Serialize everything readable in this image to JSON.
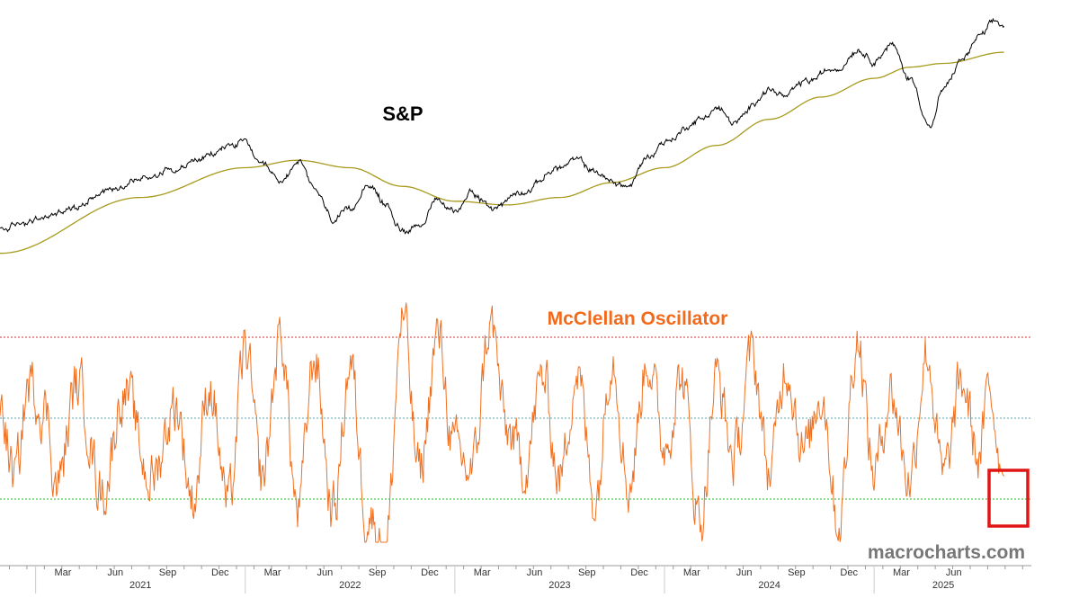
{
  "colors": {
    "sp_line": "#000000",
    "sp_ma": "#a89a1c",
    "osc_line": "#f07020",
    "upper_ref": "#d93030",
    "mid_ref": "#5aaab0",
    "lower_ref": "#22bb22",
    "highlight_box": "#e01515",
    "osc_title": "#f26a1b",
    "watermark": "#777777",
    "axis": "#999999"
  },
  "chart_data": [
    {
      "type": "line",
      "title": "S&P",
      "xlabel": "",
      "ylabel": "",
      "ylim": [
        3200,
        6400
      ],
      "x_range": [
        2020.83,
        2025.62
      ],
      "series": [
        {
          "name": "S&P",
          "anchors": [
            [
              2020.83,
              3620
            ],
            [
              2021.0,
              3750
            ],
            [
              2021.17,
              3900
            ],
            [
              2021.33,
              4150
            ],
            [
              2021.5,
              4300
            ],
            [
              2021.67,
              4450
            ],
            [
              2021.83,
              4600
            ],
            [
              2021.92,
              4750
            ],
            [
              2022.0,
              4790
            ],
            [
              2022.08,
              4450
            ],
            [
              2022.17,
              4250
            ],
            [
              2022.25,
              4550
            ],
            [
              2022.33,
              4150
            ],
            [
              2022.42,
              3750
            ],
            [
              2022.5,
              3850
            ],
            [
              2022.58,
              4250
            ],
            [
              2022.67,
              3950
            ],
            [
              2022.75,
              3600
            ],
            [
              2022.83,
              3700
            ],
            [
              2022.92,
              4000
            ],
            [
              2023.0,
              3850
            ],
            [
              2023.08,
              4150
            ],
            [
              2023.17,
              3900
            ],
            [
              2023.33,
              4150
            ],
            [
              2023.5,
              4450
            ],
            [
              2023.58,
              4550
            ],
            [
              2023.67,
              4400
            ],
            [
              2023.75,
              4250
            ],
            [
              2023.83,
              4200
            ],
            [
              2023.92,
              4600
            ],
            [
              2024.0,
              4800
            ],
            [
              2024.17,
              5100
            ],
            [
              2024.25,
              5250
            ],
            [
              2024.33,
              5050
            ],
            [
              2024.5,
              5500
            ],
            [
              2024.58,
              5400
            ],
            [
              2024.67,
              5600
            ],
            [
              2024.83,
              5800
            ],
            [
              2024.92,
              6050
            ],
            [
              2025.0,
              5900
            ],
            [
              2025.08,
              6100
            ],
            [
              2025.17,
              5650
            ],
            [
              2025.27,
              5000
            ],
            [
              2025.33,
              5500
            ],
            [
              2025.42,
              5900
            ],
            [
              2025.5,
              6200
            ],
            [
              2025.58,
              6400
            ],
            [
              2025.62,
              6350
            ]
          ]
        },
        {
          "name": "Moving Average",
          "anchors": [
            [
              2020.83,
              3300
            ],
            [
              2021.5,
              4050
            ],
            [
              2022.0,
              4450
            ],
            [
              2022.25,
              4550
            ],
            [
              2022.5,
              4450
            ],
            [
              2022.75,
              4200
            ],
            [
              2023.0,
              4000
            ],
            [
              2023.25,
              3950
            ],
            [
              2023.5,
              4050
            ],
            [
              2023.75,
              4250
            ],
            [
              2024.0,
              4450
            ],
            [
              2024.25,
              4750
            ],
            [
              2024.5,
              5100
            ],
            [
              2024.75,
              5400
            ],
            [
              2025.0,
              5650
            ],
            [
              2025.17,
              5800
            ],
            [
              2025.33,
              5850
            ],
            [
              2025.62,
              6000
            ]
          ]
        }
      ],
      "annotations": [
        "S&P"
      ]
    },
    {
      "type": "line",
      "title": "McClellan Oscillator",
      "xlabel": "",
      "ylabel": "",
      "ylim": [
        -100,
        100
      ],
      "reference_lines": [
        {
          "name": "overbought",
          "value": 60,
          "style": "dotted"
        },
        {
          "name": "zero",
          "value": 0,
          "style": "dotted"
        },
        {
          "name": "oversold",
          "value": -60,
          "style": "dotted"
        }
      ],
      "series": [
        {
          "name": "McClellan Oscillator",
          "anchors": [
            [
              2020.83,
              10
            ],
            [
              2020.9,
              -45
            ],
            [
              2020.97,
              25
            ],
            [
              2021.05,
              5
            ],
            [
              2021.1,
              -50
            ],
            [
              2021.2,
              25
            ],
            [
              2021.32,
              -55
            ],
            [
              2021.42,
              20
            ],
            [
              2021.55,
              -45
            ],
            [
              2021.67,
              10
            ],
            [
              2021.75,
              -60
            ],
            [
              2021.83,
              25
            ],
            [
              2021.92,
              -65
            ],
            [
              2022.0,
              50
            ],
            [
              2022.08,
              -45
            ],
            [
              2022.17,
              60
            ],
            [
              2022.25,
              -70
            ],
            [
              2022.33,
              45
            ],
            [
              2022.42,
              -70
            ],
            [
              2022.5,
              40
            ],
            [
              2022.58,
              -70
            ],
            [
              2022.67,
              -95
            ],
            [
              2022.75,
              75
            ],
            [
              2022.83,
              -40
            ],
            [
              2022.92,
              60
            ],
            [
              2023.0,
              -25
            ],
            [
              2023.08,
              -40
            ],
            [
              2023.17,
              70
            ],
            [
              2023.25,
              -10
            ],
            [
              2023.33,
              -35
            ],
            [
              2023.42,
              30
            ],
            [
              2023.5,
              -45
            ],
            [
              2023.58,
              35
            ],
            [
              2023.67,
              -60
            ],
            [
              2023.75,
              50
            ],
            [
              2023.83,
              -50
            ],
            [
              2023.92,
              45
            ],
            [
              2024.0,
              -20
            ],
            [
              2024.08,
              30
            ],
            [
              2024.17,
              -75
            ],
            [
              2024.25,
              30
            ],
            [
              2024.33,
              -30
            ],
            [
              2024.42,
              45
            ],
            [
              2024.5,
              -40
            ],
            [
              2024.58,
              40
            ],
            [
              2024.67,
              -25
            ],
            [
              2024.75,
              20
            ],
            [
              2024.83,
              -77
            ],
            [
              2024.92,
              60
            ],
            [
              2025.0,
              -40
            ],
            [
              2025.08,
              20
            ],
            [
              2025.17,
              -45
            ],
            [
              2025.25,
              50
            ],
            [
              2025.33,
              -45
            ],
            [
              2025.42,
              25
            ],
            [
              2025.5,
              -30
            ],
            [
              2025.55,
              20
            ],
            [
              2025.62,
              -43
            ]
          ]
        }
      ],
      "annotations": [
        "McClellan Oscillator"
      ]
    }
  ],
  "x_axis": {
    "months": [
      {
        "label": "Mar",
        "t": 2021.13
      },
      {
        "label": "Jun",
        "t": 2021.38
      },
      {
        "label": "Sep",
        "t": 2021.63
      },
      {
        "label": "Dec",
        "t": 2021.88
      },
      {
        "label": "Mar",
        "t": 2022.13
      },
      {
        "label": "Jun",
        "t": 2022.38
      },
      {
        "label": "Sep",
        "t": 2022.63
      },
      {
        "label": "Dec",
        "t": 2022.88
      },
      {
        "label": "Mar",
        "t": 2023.13
      },
      {
        "label": "Jun",
        "t": 2023.38
      },
      {
        "label": "Sep",
        "t": 2023.63
      },
      {
        "label": "Dec",
        "t": 2023.88
      },
      {
        "label": "Mar",
        "t": 2024.13
      },
      {
        "label": "Jun",
        "t": 2024.38
      },
      {
        "label": "Sep",
        "t": 2024.63
      },
      {
        "label": "Dec",
        "t": 2024.88
      },
      {
        "label": "Mar",
        "t": 2025.13
      },
      {
        "label": "Jun",
        "t": 2025.38
      }
    ],
    "years": [
      {
        "label": "2021",
        "t": 2021.5
      },
      {
        "label": "2022",
        "t": 2022.5
      },
      {
        "label": "2023",
        "t": 2023.5
      },
      {
        "label": "2024",
        "t": 2024.5
      },
      {
        "label": "2025",
        "t": 2025.33
      }
    ],
    "year_boundaries": [
      2021.0,
      2022.0,
      2023.0,
      2024.0,
      2025.0
    ]
  },
  "watermark": "macrocharts.com",
  "highlight": {
    "name": "recent oversold reading",
    "t_start": 2025.57,
    "t_end": 2025.75,
    "osc_from": -40,
    "osc_to": -80
  }
}
